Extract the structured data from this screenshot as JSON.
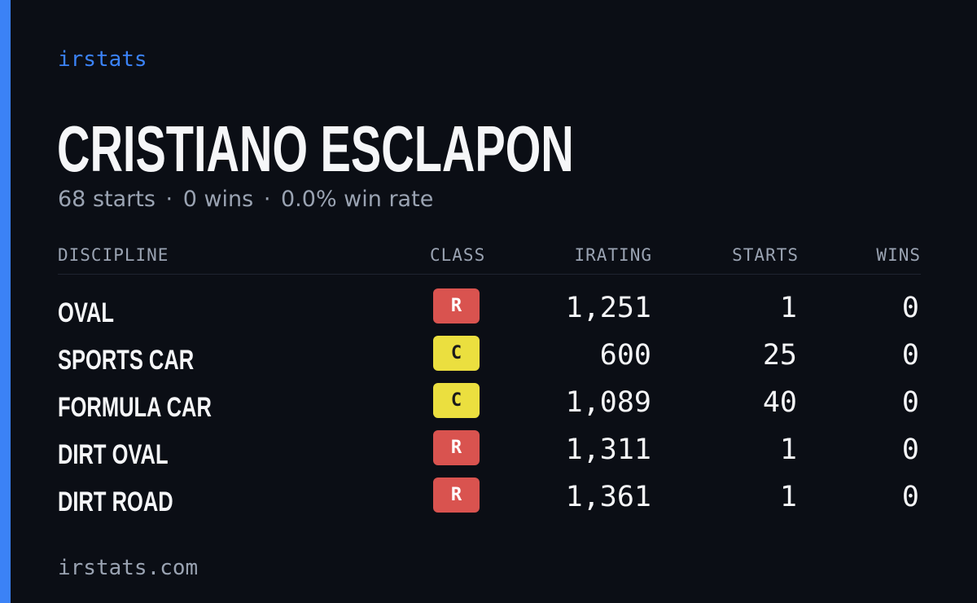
{
  "brand": "irstats",
  "driver": {
    "name": "CRISTIANO ESCLAPON",
    "starts_text": "68 starts",
    "wins_text": "0 wins",
    "win_rate_text": "0.0% win rate",
    "separator": "·"
  },
  "table": {
    "headers": {
      "discipline": "DISCIPLINE",
      "class": "CLASS",
      "irating": "IRATING",
      "starts": "STARTS",
      "wins": "WINS"
    },
    "rows": [
      {
        "discipline": "OVAL",
        "class": "R",
        "irating": "1,251",
        "starts": "1",
        "wins": "0"
      },
      {
        "discipline": "SPORTS CAR",
        "class": "C",
        "irating": "600",
        "starts": "25",
        "wins": "0"
      },
      {
        "discipline": "FORMULA CAR",
        "class": "C",
        "irating": "1,089",
        "starts": "40",
        "wins": "0"
      },
      {
        "discipline": "DIRT OVAL",
        "class": "R",
        "irating": "1,311",
        "starts": "1",
        "wins": "0"
      },
      {
        "discipline": "DIRT ROAD",
        "class": "R",
        "irating": "1,361",
        "starts": "1",
        "wins": "0"
      }
    ]
  },
  "footer": "irstats.com",
  "colors": {
    "background": "#0b0e15",
    "accent": "#3b82f6",
    "class_r": "#d9534f",
    "class_c": "#ebdf3f",
    "muted_text": "#9aa3b2"
  }
}
